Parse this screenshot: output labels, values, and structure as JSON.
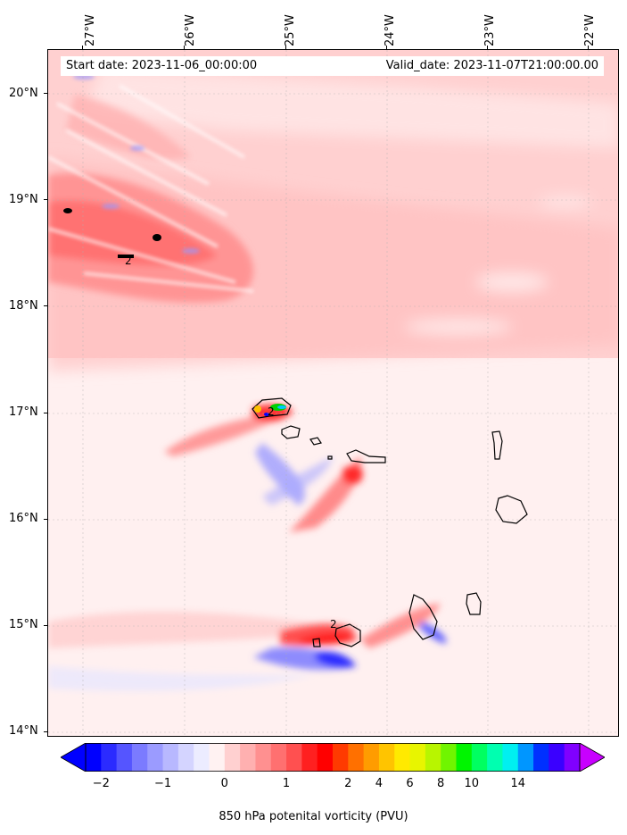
{
  "map": {
    "lon_labels": [
      {
        "text": "27°W",
        "lon": -27
      },
      {
        "text": "26°W",
        "lon": -26
      },
      {
        "text": "25°W",
        "lon": -25
      },
      {
        "text": "24°W",
        "lon": -24
      },
      {
        "text": "23°W",
        "lon": -23
      },
      {
        "text": "22°W",
        "lon": -22
      }
    ],
    "lat_labels": [
      {
        "text": "20°N",
        "lat": 20
      },
      {
        "text": "19°N",
        "lat": 19
      },
      {
        "text": "18°N",
        "lat": 18
      },
      {
        "text": "17°N",
        "lat": 17
      },
      {
        "text": "16°N",
        "lat": 16
      },
      {
        "text": "15°N",
        "lat": 15
      },
      {
        "text": "14°N",
        "lat": 14
      }
    ],
    "lon_range": [
      -27.35,
      -21.65
    ],
    "lat_range": [
      13.95,
      20.42
    ],
    "start_date": "Start date: 2023-11-06_00:00:00",
    "valid_date": "Valid_date: 2023-11-07T21:00:00.00",
    "contour_labels": [
      "2",
      "2",
      "2"
    ],
    "gridlines": true
  },
  "colorbar": {
    "colors": [
      "#0000ff",
      "#2b2bff",
      "#5555ff",
      "#7b7bff",
      "#9b9bff",
      "#b8b8ff",
      "#d4d4ff",
      "#ececff",
      "#fff2f2",
      "#ffd0d0",
      "#ffb0b0",
      "#ff9090",
      "#ff7070",
      "#ff5050",
      "#ff2020",
      "#ff0000",
      "#ff3a00",
      "#ff7000",
      "#ff9c00",
      "#ffc400",
      "#ffea00",
      "#e8f500",
      "#b8f500",
      "#70f500",
      "#00f500",
      "#00ff60",
      "#00ffb0",
      "#00f0f0",
      "#0096ff",
      "#0030ff",
      "#3a00ff",
      "#8000ff"
    ],
    "under_color": "#0000ff",
    "over_color": "#c800ff",
    "tick_labels": [
      "−2",
      "−1",
      "0",
      "1",
      "2",
      "4",
      "6",
      "8",
      "10",
      "14"
    ],
    "label": "850 hPa potenital vorticity (PVU)"
  },
  "colors": {
    "pos_light": "#ffe4e4",
    "pos_mid": "#ffcccc",
    "pos_strong": "#ff9a9a",
    "pos_max": "#ff2020",
    "neg_light": "#eeeeff",
    "neg_mid": "#b8b8ff",
    "neg_strong": "#3a3aff"
  }
}
